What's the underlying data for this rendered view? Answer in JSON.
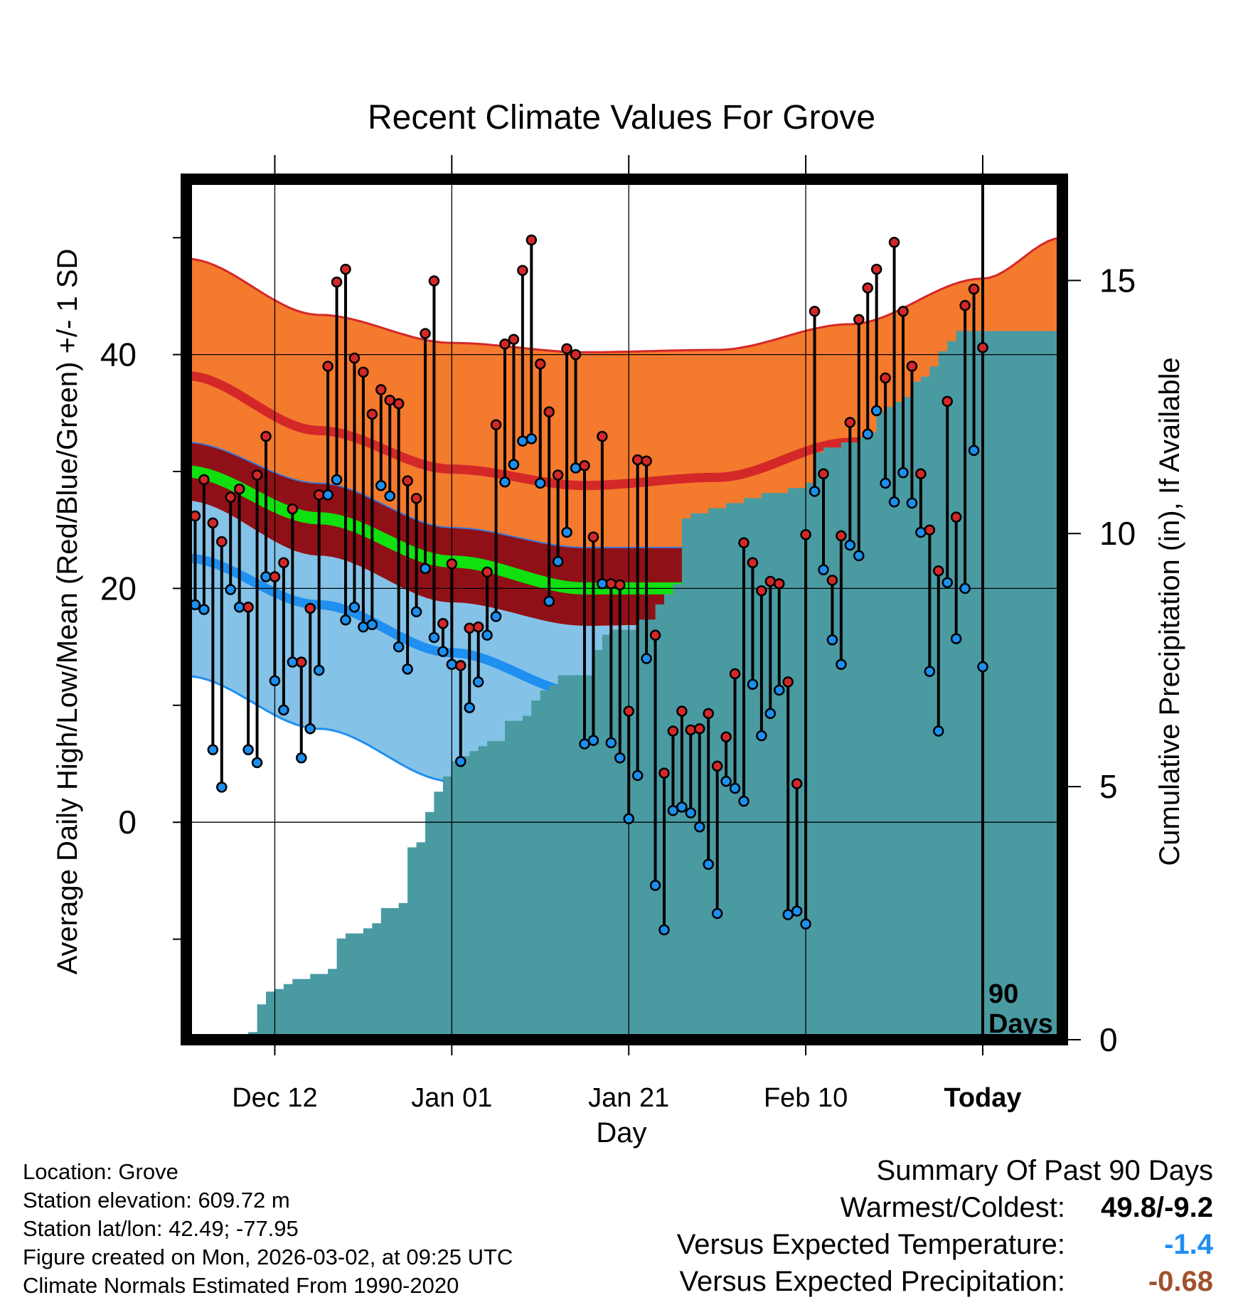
{
  "chart_data": {
    "type": "line",
    "title": "Recent Climate Values For Grove",
    "xlabel": "Day",
    "ylabel_left": "Average Daily High/Low/Mean (Red/Blue/Green) +/- 1 SD",
    "ylabel_right": "Cumulative Precipitation (in), If Available",
    "x_range": [
      -90,
      9
    ],
    "ylim_left": [
      -18.6,
      55
    ],
    "ylim_right": [
      0,
      17
    ],
    "y_ticks_left": [
      0,
      20,
      40
    ],
    "y_ticks_right": [
      0,
      5,
      10,
      15
    ],
    "x_ticks": [
      {
        "day": -80,
        "label": "Dec 12"
      },
      {
        "day": -60,
        "label": "Jan 01"
      },
      {
        "day": -40,
        "label": "Jan 21"
      },
      {
        "day": -20,
        "label": "Feb 10"
      },
      {
        "day": 0,
        "label": "Today"
      }
    ],
    "today_marker_label": [
      "90",
      "Days"
    ],
    "normals": {
      "days": [
        -90,
        -75,
        -60,
        -45,
        -30,
        -15,
        0,
        9
      ],
      "high_mean": [
        38.2,
        33.5,
        30.2,
        28.8,
        29.5,
        32.5,
        35.8,
        38.0
      ],
      "high_upper": [
        48.2,
        43.4,
        41.0,
        40.2,
        40.4,
        42.6,
        46.5,
        50.0
      ],
      "high_lower": [
        32.5,
        29.0,
        25.2,
        23.5,
        23.5,
        25.2,
        27.5,
        28.9
      ],
      "mean_mid": [
        30.0,
        26.0,
        22.3,
        20.0,
        20.0,
        22.5,
        25.5,
        27.0
      ],
      "low_mean": [
        22.6,
        18.6,
        14.5,
        11.0,
        10.5,
        12.5,
        15.5,
        17.3
      ],
      "low_upper": [
        27.5,
        22.8,
        18.8,
        16.8,
        17.0,
        19.8,
        23.5,
        26.0
      ],
      "low_lower": [
        12.5,
        8.0,
        3.5,
        -2.0,
        -2.0,
        -0.5,
        2.5,
        5.4
      ]
    },
    "series": [
      {
        "name": "Daily High",
        "color": "#d42828",
        "values": [
          26.2,
          29.3,
          25.6,
          24.0,
          27.8,
          28.5,
          18.4,
          29.7,
          33.0,
          21.0,
          22.2,
          26.8,
          13.7,
          18.3,
          28.0,
          39.0,
          46.2,
          47.3,
          39.7,
          38.5,
          34.9,
          37.0,
          36.1,
          35.8,
          29.2,
          27.7,
          41.8,
          46.3,
          17.0,
          22.1,
          13.4,
          16.6,
          16.7,
          21.4,
          34.0,
          40.9,
          41.3,
          47.2,
          49.8,
          39.2,
          35.1,
          29.7,
          40.5,
          40.0,
          30.5,
          24.4,
          33.0,
          20.4,
          20.3,
          9.5,
          31.0,
          30.9,
          16.0,
          4.2,
          7.8,
          9.5,
          7.9,
          8.0,
          9.3,
          4.8,
          7.3,
          12.7,
          23.9,
          22.2,
          19.8,
          20.6,
          20.4,
          12.0,
          3.3,
          24.6,
          43.7,
          29.8,
          20.7,
          24.5,
          34.2,
          43.0,
          45.7,
          47.3,
          38.0,
          49.6,
          43.7,
          39.0,
          29.8,
          25.0,
          21.5,
          36.0,
          26.1,
          44.2,
          45.6,
          40.6
        ]
      },
      {
        "name": "Daily Low",
        "color": "#1c8ff0",
        "values": [
          18.6,
          18.2,
          6.2,
          3.0,
          19.9,
          18.4,
          6.2,
          5.1,
          21.0,
          12.1,
          9.6,
          13.7,
          5.5,
          8.0,
          13.0,
          28.0,
          29.3,
          17.3,
          18.4,
          16.7,
          16.9,
          28.8,
          27.9,
          15.0,
          13.1,
          18.0,
          21.7,
          15.8,
          14.6,
          13.5,
          5.2,
          9.8,
          12.0,
          16.0,
          17.6,
          29.1,
          30.6,
          32.6,
          32.8,
          29.0,
          18.9,
          22.3,
          24.8,
          30.3,
          6.7,
          7.0,
          20.4,
          6.8,
          5.5,
          0.3,
          4.0,
          14.0,
          -5.4,
          -9.2,
          1.0,
          1.3,
          0.8,
          -0.4,
          -3.6,
          -7.8,
          3.5,
          2.9,
          1.8,
          11.8,
          7.4,
          9.3,
          11.3,
          -7.9,
          -7.6,
          -8.7,
          28.3,
          21.6,
          15.6,
          13.5,
          23.7,
          22.8,
          33.2,
          35.2,
          29.0,
          27.4,
          29.9,
          27.3,
          24.8,
          12.9,
          7.8,
          20.5,
          15.7,
          20.0,
          31.8,
          13.3
        ]
      },
      {
        "name": "Cumulative Precipitation",
        "color": "#4a9aa2",
        "values": [
          0.0,
          0.0,
          0.0,
          0.0,
          0.0,
          0.0,
          0.0,
          0.15,
          0.7,
          0.95,
          1.0,
          1.1,
          1.2,
          1.2,
          1.3,
          1.3,
          1.4,
          2.0,
          2.1,
          2.1,
          2.2,
          2.3,
          2.6,
          2.6,
          2.7,
          3.8,
          3.9,
          4.5,
          4.9,
          5.2,
          5.5,
          5.6,
          5.7,
          5.8,
          5.9,
          5.9,
          6.3,
          6.3,
          6.4,
          6.7,
          6.9,
          7.0,
          7.2,
          7.2,
          7.2,
          7.2,
          7.7,
          8.0,
          8.1,
          8.1,
          8.1,
          8.3,
          8.3,
          8.6,
          8.8,
          9.0,
          10.3,
          10.4,
          10.4,
          10.5,
          10.5,
          10.6,
          10.6,
          10.7,
          10.7,
          10.8,
          10.8,
          10.8,
          10.9,
          10.9,
          11.0,
          11.6,
          11.7,
          11.7,
          11.8,
          11.8,
          11.9,
          12.0,
          12.4,
          12.5,
          12.6,
          12.7,
          13.0,
          13.1,
          13.3,
          13.6,
          13.8,
          14.0,
          14.0,
          14.0,
          14.0,
          14.0,
          14.0,
          14.0,
          14.0,
          14.0,
          14.0,
          14.0,
          14.0,
          14.0
        ]
      }
    ]
  },
  "info": {
    "location": "Location: Grove",
    "elevation": "Station elevation: 609.72 m",
    "latlon": "Station lat/lon: 42.49; -77.95",
    "created": "Figure created on Mon, 2026-03-02, at 09:25 UTC",
    "normals": "Climate Normals Estimated From 1990-2020"
  },
  "summary": {
    "title": "Summary Of Past 90 Days",
    "warmest_label": "Warmest/Coldest:",
    "warmest_value": "49.8/-9.2",
    "temp_label": "Versus Expected Temperature:",
    "temp_value": "-1.4",
    "temp_color": "#1f8ff0",
    "precip_label": "Versus Expected Precipitation:",
    "precip_value": "-0.68",
    "precip_color": "#a0522d"
  }
}
